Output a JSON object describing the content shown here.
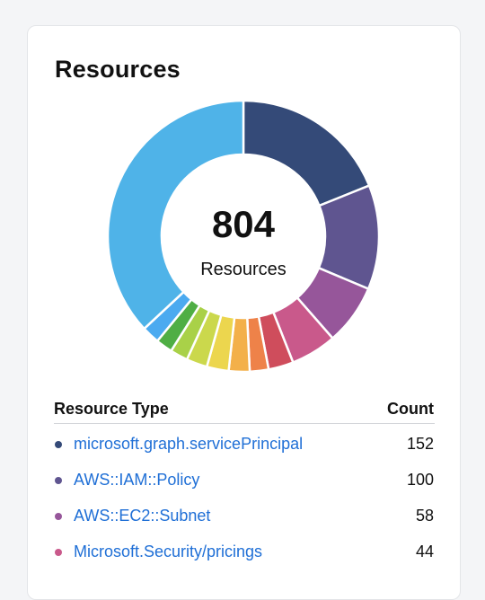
{
  "card": {
    "title": "Resources"
  },
  "donut": {
    "total": "804",
    "total_label": "Resources"
  },
  "table": {
    "col_type": "Resource Type",
    "col_count": "Count",
    "rows": [
      {
        "name": "microsoft.graph.servicePrincipal",
        "count": "152",
        "color": "#344a78"
      },
      {
        "name": "AWS::IAM::Policy",
        "count": "100",
        "color": "#5f5590"
      },
      {
        "name": "AWS::EC2::Subnet",
        "count": "58",
        "color": "#96569a"
      },
      {
        "name": "Microsoft.Security/pricings",
        "count": "44",
        "color": "#c9598b"
      }
    ]
  },
  "chart_data": {
    "type": "pie",
    "total": 804,
    "values": [
      152,
      100,
      58,
      44,
      24,
      18,
      20,
      21,
      20,
      17,
      16,
      17,
      297
    ],
    "colors": [
      "#344a78",
      "#5f5590",
      "#96569a",
      "#c9598b",
      "#cf4d5c",
      "#ee8249",
      "#f3b04a",
      "#ecd64e",
      "#cbd84c",
      "#a9d148",
      "#4fae44",
      "#4baaf0",
      "#4fb3e8"
    ]
  }
}
